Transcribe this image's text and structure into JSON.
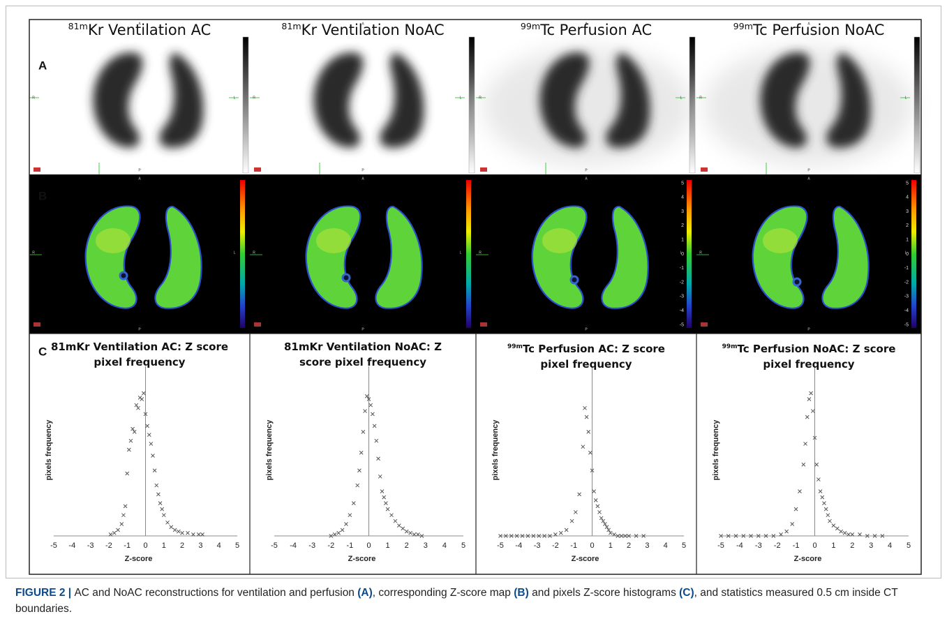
{
  "figure": {
    "panel_labels": [
      "A",
      "B",
      "C"
    ],
    "columns": [
      {
        "sup": "81m",
        "title": "Kr Ventilation AC"
      },
      {
        "sup": "81m",
        "title": "Kr Ventilation NoAC"
      },
      {
        "sup": "99m",
        "title": "Tc Perfusion AC"
      },
      {
        "sup": "99m",
        "title": "Tc Perfusion NoAC"
      }
    ],
    "orientation": [
      "A",
      "P",
      "R",
      "L"
    ],
    "colorbar_ticks": [
      5,
      4,
      3,
      2,
      1,
      0,
      -1,
      -2,
      -3,
      -4,
      -5
    ],
    "caption": [
      {
        "text": "FIGURE 2 | ",
        "bold": true
      },
      {
        "text": "AC and NoAC reconstructions for ventilation and perfusion "
      },
      {
        "text": "(A)",
        "bold": true
      },
      {
        "text": ", corresponding Z-score map "
      },
      {
        "text": "(B)",
        "bold": true
      },
      {
        "text": " and pixels Z-score histograms "
      },
      {
        "text": "(C)",
        "bold": true
      },
      {
        "text": ", and statistics measured 0.5 cm inside CT boundaries."
      }
    ]
  },
  "chart_data": [
    {
      "type": "scatter",
      "title": "81mKr Ventilation AC: Z score pixel frequency",
      "x_label": "Z-score",
      "y_label": "pixels frequency",
      "xlim": [
        -5,
        5
      ],
      "xticks": [
        -5,
        -4,
        -3,
        -2,
        -1,
        0,
        1,
        2,
        3,
        4,
        5
      ],
      "ylim": [
        0,
        100
      ],
      "color": "#555555",
      "x": [
        -1.9,
        -1.7,
        -1.5,
        -1.3,
        -1.2,
        -1.1,
        -1.0,
        -0.9,
        -0.8,
        -0.7,
        -0.6,
        -0.5,
        -0.4,
        -0.3,
        -0.2,
        -0.1,
        0.0,
        0.1,
        0.2,
        0.3,
        0.4,
        0.5,
        0.6,
        0.7,
        0.8,
        0.9,
        1.0,
        1.2,
        1.4,
        1.6,
        1.8,
        2.0,
        2.3,
        2.6,
        2.9,
        3.1
      ],
      "values": [
        1,
        2,
        4,
        8,
        14,
        20,
        42,
        58,
        64,
        72,
        70,
        88,
        86,
        93,
        92,
        96,
        82,
        74,
        68,
        62,
        54,
        44,
        34,
        28,
        22,
        18,
        14,
        9,
        6,
        4,
        3,
        2,
        2,
        1,
        1,
        1
      ]
    },
    {
      "type": "scatter",
      "title": "81mKr Ventilation NoAC: Z score pixel frequency",
      "x_label": "Z-score",
      "y_label": "pixels frequency",
      "xlim": [
        -5,
        5
      ],
      "xticks": [
        -5,
        -4,
        -3,
        -2,
        -1,
        0,
        1,
        2,
        3,
        4,
        5
      ],
      "ylim": [
        0,
        100
      ],
      "color": "#555555",
      "x": [
        -2.0,
        -1.8,
        -1.6,
        -1.4,
        -1.2,
        -1.0,
        -0.8,
        -0.6,
        -0.5,
        -0.4,
        -0.3,
        -0.2,
        -0.1,
        0.0,
        0.1,
        0.2,
        0.3,
        0.4,
        0.5,
        0.6,
        0.7,
        0.8,
        0.9,
        1.0,
        1.2,
        1.4,
        1.6,
        1.8,
        2.0,
        2.2,
        2.4,
        2.6,
        2.8
      ],
      "values": [
        0,
        1,
        2,
        4,
        8,
        14,
        22,
        34,
        44,
        56,
        70,
        84,
        94,
        92,
        88,
        82,
        74,
        64,
        52,
        40,
        30,
        26,
        22,
        18,
        14,
        10,
        7,
        5,
        3,
        2,
        1,
        1,
        0
      ]
    },
    {
      "type": "scatter",
      "title_sup": "99m",
      "title": "Tc Perfusion AC: Z score pixel frequency",
      "x_label": "Z-score",
      "y_label": "pixels frequency",
      "xlim": [
        -5,
        5
      ],
      "xticks": [
        -5,
        -4,
        -3,
        -2,
        -1,
        0,
        1,
        2,
        3,
        4,
        5
      ],
      "ylim": [
        0,
        100
      ],
      "color": "#555555",
      "x": [
        -5,
        -4.7,
        -4.4,
        -4.1,
        -3.8,
        -3.5,
        -3.2,
        -2.9,
        -2.6,
        -2.3,
        -2.0,
        -1.7,
        -1.4,
        -1.1,
        -0.9,
        -0.7,
        -0.5,
        -0.4,
        -0.3,
        -0.2,
        -0.1,
        0,
        0.1,
        0.2,
        0.3,
        0.4,
        0.5,
        0.6,
        0.7,
        0.8,
        0.9,
        1.0,
        1.2,
        1.4,
        1.6,
        1.8,
        2.0,
        2.4,
        2.8
      ],
      "values": [
        0,
        0,
        0,
        0,
        0,
        0,
        0,
        0,
        0,
        0,
        1,
        2,
        4,
        10,
        16,
        28,
        60,
        86,
        80,
        70,
        56,
        44,
        30,
        24,
        20,
        16,
        12,
        10,
        8,
        6,
        4,
        2,
        1,
        0,
        0,
        0,
        0,
        0,
        0
      ]
    },
    {
      "type": "scatter",
      "title_sup": "99m",
      "title": "Tc Perfusion NoAC: Z score pixel frequency",
      "x_label": "Z-score",
      "y_label": "pixels frequency",
      "xlim": [
        -5,
        5
      ],
      "xticks": [
        -5,
        -4,
        -3,
        -2,
        -1,
        0,
        1,
        2,
        3,
        4,
        5
      ],
      "ylim": [
        0,
        100
      ],
      "color": "#555555",
      "x": [
        -5,
        -4.6,
        -4.2,
        -3.8,
        -3.4,
        -3.0,
        -2.6,
        -2.2,
        -1.8,
        -1.5,
        -1.2,
        -1.0,
        -0.8,
        -0.6,
        -0.5,
        -0.4,
        -0.3,
        -0.2,
        -0.1,
        0,
        0.1,
        0.2,
        0.3,
        0.4,
        0.5,
        0.6,
        0.7,
        0.8,
        1.0,
        1.2,
        1.4,
        1.6,
        1.8,
        2.0,
        2.4,
        2.8,
        3.2,
        3.6
      ],
      "values": [
        0,
        0,
        0,
        0,
        0,
        0,
        0,
        0,
        1,
        3,
        8,
        18,
        30,
        48,
        62,
        80,
        92,
        96,
        84,
        66,
        48,
        38,
        30,
        26,
        22,
        18,
        14,
        10,
        7,
        5,
        3,
        2,
        1,
        1,
        1,
        0,
        0,
        0
      ]
    }
  ]
}
